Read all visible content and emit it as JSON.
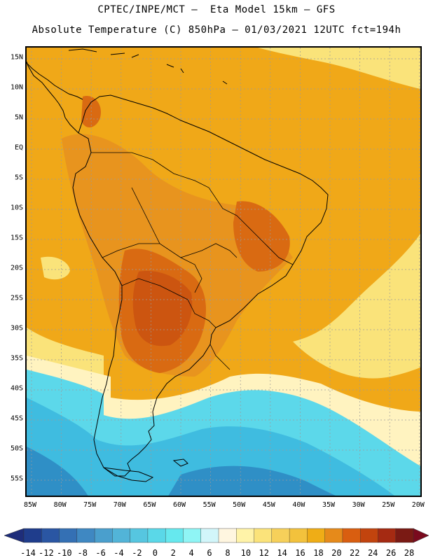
{
  "header": {
    "line1": "CPTEC/INPE/MCT —  Eta Model 15km — GFS",
    "line2": "Absolute Temperature (C) 850hPa — 01/03/2021 12UTC fct=194h"
  },
  "map": {
    "lat_labels": [
      "15N",
      "10N",
      "5N",
      "EQ",
      "5S",
      "10S",
      "15S",
      "20S",
      "25S",
      "30S",
      "35S",
      "40S",
      "45S",
      "50S",
      "55S"
    ],
    "lon_labels": [
      "85W",
      "80W",
      "75W",
      "70W",
      "65W",
      "60W",
      "55W",
      "50W",
      "45W",
      "40W",
      "35W",
      "30W",
      "25W",
      "20W"
    ]
  },
  "colorbar": {
    "labels": [
      "-14",
      "-12",
      "-10",
      "-8",
      "-6",
      "-4",
      "-2",
      "0",
      "2",
      "4",
      "6",
      "8",
      "10",
      "12",
      "14",
      "16",
      "18",
      "20",
      "22",
      "24",
      "26",
      "28"
    ],
    "colors": [
      "#1f3d8c",
      "#2a56a3",
      "#3470b4",
      "#3f88c2",
      "#4a9fcd",
      "#52b4d8",
      "#56c6e0",
      "#5ad8e8",
      "#66e8ee",
      "#8ff5f5",
      "#d2f6fa",
      "#fff6e0",
      "#fff3a8",
      "#fbe37a",
      "#f6d05a",
      "#f3c23c",
      "#efad16",
      "#e68a1a",
      "#d95e10",
      "#c2440e",
      "#a52a12",
      "#7a1a14"
    ],
    "low_color": "#1e2d7a",
    "high_color": "#7a0a1e"
  },
  "palette": {
    "ocean_orange": "#f0a818",
    "land_orange": "#e8941e",
    "hot": "#d96a12",
    "hotter": "#cc5510",
    "cool_yellow": "#fae37a",
    "pale": "#fff3c0",
    "cyan": "#5cd8ea",
    "blue_cyan": "#3fbce0",
    "deep_blue": "#2f8fc6",
    "grid": "#9a9a9a",
    "coast": "#000000"
  }
}
